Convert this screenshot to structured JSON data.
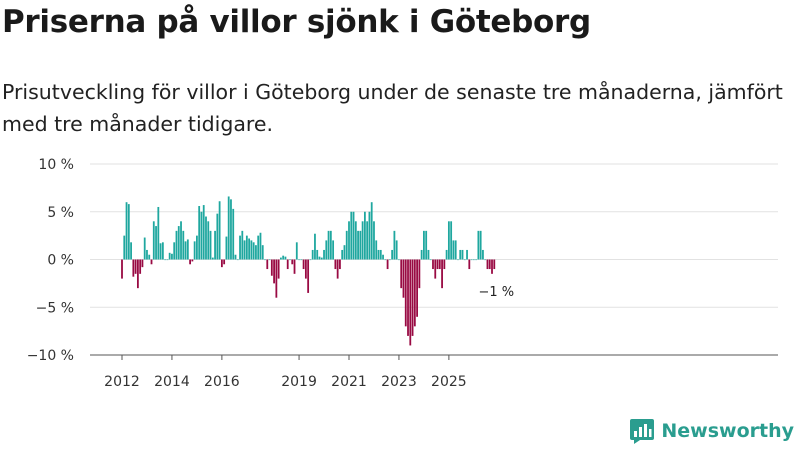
{
  "title": "Priserna på villor sjönk i Göteborg",
  "subtitle": "Prisutveckling för villor i Göteborg under de senaste tre månaderna, jämfört med tre månader tidigare.",
  "brand": {
    "name": "Newsworthy",
    "icon": "newsworthy-logo-icon"
  },
  "colors": {
    "positive": "#1fa79f",
    "negative": "#990a43",
    "grid": "#e2e2e2",
    "axis": "#555555"
  },
  "chart_data": {
    "type": "bar",
    "title": "Priserna på villor sjönk i Göteborg",
    "xlabel": "",
    "ylabel": "",
    "ylim": [
      -10,
      10
    ],
    "ytick_values": [
      10,
      5,
      0,
      -5,
      -10
    ],
    "ytick_labels": [
      "10 %",
      "5 %",
      "0 %",
      "−5 %",
      "−10 %"
    ],
    "xtick_labels": [
      {
        "index": 0,
        "label": "2012"
      },
      {
        "index": 22,
        "label": "2014"
      },
      {
        "index": 44,
        "label": "2016"
      },
      {
        "index": 78,
        "label": "2019"
      },
      {
        "index": 100,
        "label": "2021"
      },
      {
        "index": 122,
        "label": "2023"
      },
      {
        "index": 144,
        "label": "2025"
      }
    ],
    "last_value_label": "−1 %",
    "categories_note": "monthly, 2012–2025",
    "values": [
      -2,
      2.5,
      6,
      5.8,
      1.8,
      -1.8,
      -1.5,
      -3,
      -1.5,
      -0.8,
      2.3,
      1,
      0.5,
      -0.5,
      4,
      3.5,
      5.5,
      1.7,
      1.8,
      0,
      0,
      0.7,
      0.6,
      1.8,
      3,
      3.5,
      4,
      3,
      1.9,
      2.1,
      -0.5,
      -0.2,
      1.9,
      2.5,
      5.6,
      5,
      5.7,
      4.5,
      4,
      3,
      0.2,
      3,
      4.8,
      6.1,
      -0.8,
      -0.5,
      2.4,
      6.6,
      6.3,
      5.3,
      0.5,
      0,
      2.5,
      3,
      2,
      2.5,
      2.2,
      2,
      1.8,
      1.5,
      2.5,
      2.8,
      1.5,
      0,
      -1,
      0,
      -1.7,
      -2.5,
      -4,
      -2,
      0.2,
      0.4,
      0.3,
      -1,
      0,
      -0.5,
      -1.5,
      1.8,
      0,
      0,
      -1,
      -2,
      -3.5,
      0,
      1,
      2.7,
      1,
      0.3,
      0.2,
      1,
      2,
      3,
      3,
      2,
      -1,
      -2,
      -1,
      1,
      1.5,
      3,
      4,
      5,
      5,
      4,
      3,
      3,
      4,
      5,
      4,
      5,
      6,
      4,
      2,
      1,
      1,
      0.5,
      0,
      -1,
      0,
      1,
      3,
      2,
      0,
      -3,
      -4,
      -7,
      -8,
      -9,
      -8,
      -7,
      -6,
      -3,
      1,
      3,
      3,
      1,
      0,
      -1,
      -2,
      -1,
      -1,
      -3,
      -1,
      1,
      4,
      4,
      2,
      2,
      0,
      1,
      1,
      0,
      1,
      -1,
      0,
      0,
      0,
      3,
      3,
      1,
      0,
      -1,
      -1,
      -1.5,
      -1
    ]
  }
}
